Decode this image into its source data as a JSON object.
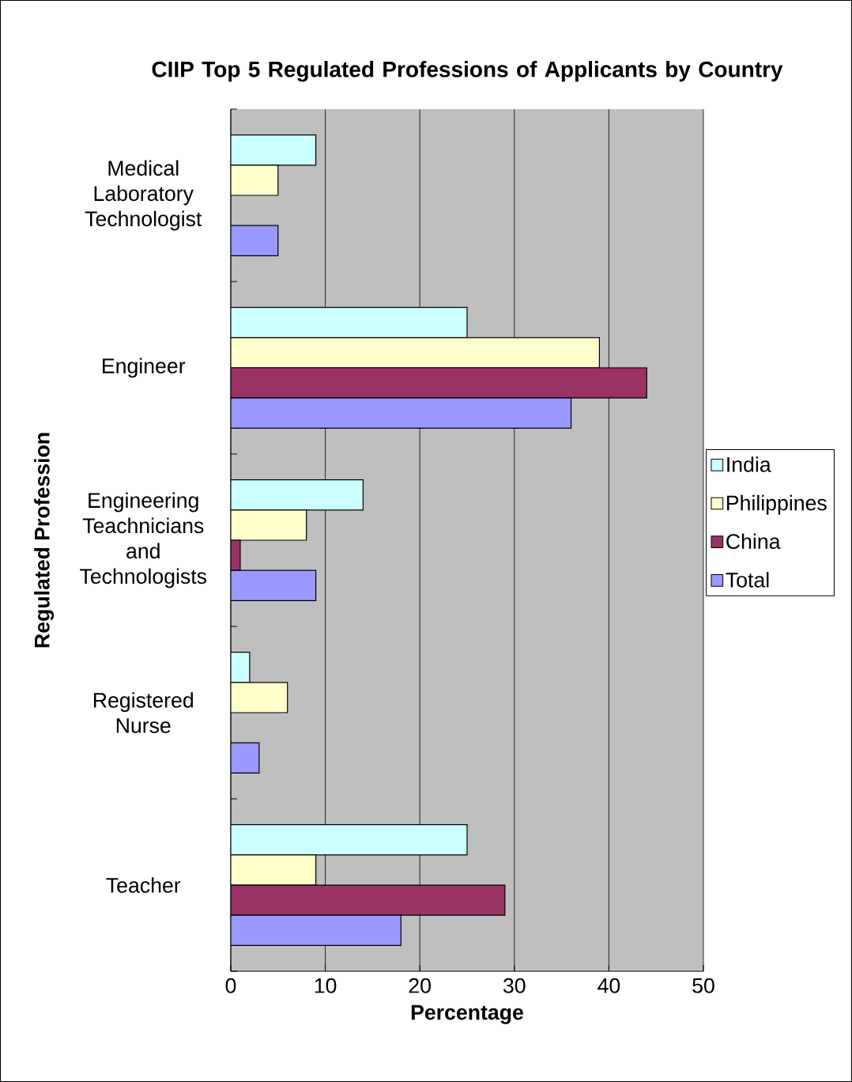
{
  "chart_data": {
    "type": "bar",
    "orientation": "horizontal",
    "title": "CIIP Top 5 Regulated Professions of Applicants by Country",
    "xlabel": "Percentage",
    "ylabel": "Regulated Profession",
    "categories": [
      "Medical Laboratory Technologist",
      "Engineer",
      "Engineering Teachnicians and Technologists",
      "Registered Nurse",
      "Teacher"
    ],
    "series": [
      {
        "name": "India",
        "color": "#ccffff",
        "values": [
          9,
          25,
          14,
          2,
          25
        ]
      },
      {
        "name": "Philippines",
        "color": "#ffffcc",
        "values": [
          5,
          39,
          8,
          6,
          9
        ]
      },
      {
        "name": "China",
        "color": "#993366",
        "values": [
          null,
          44,
          1,
          null,
          29
        ]
      },
      {
        "name": "Total",
        "color": "#9999ff",
        "values": [
          5,
          36,
          9,
          3,
          18
        ]
      }
    ],
    "xlim": [
      0,
      50
    ],
    "xticks": [
      0,
      10,
      20,
      30,
      40,
      50
    ],
    "grid": "x",
    "legend": "right"
  }
}
